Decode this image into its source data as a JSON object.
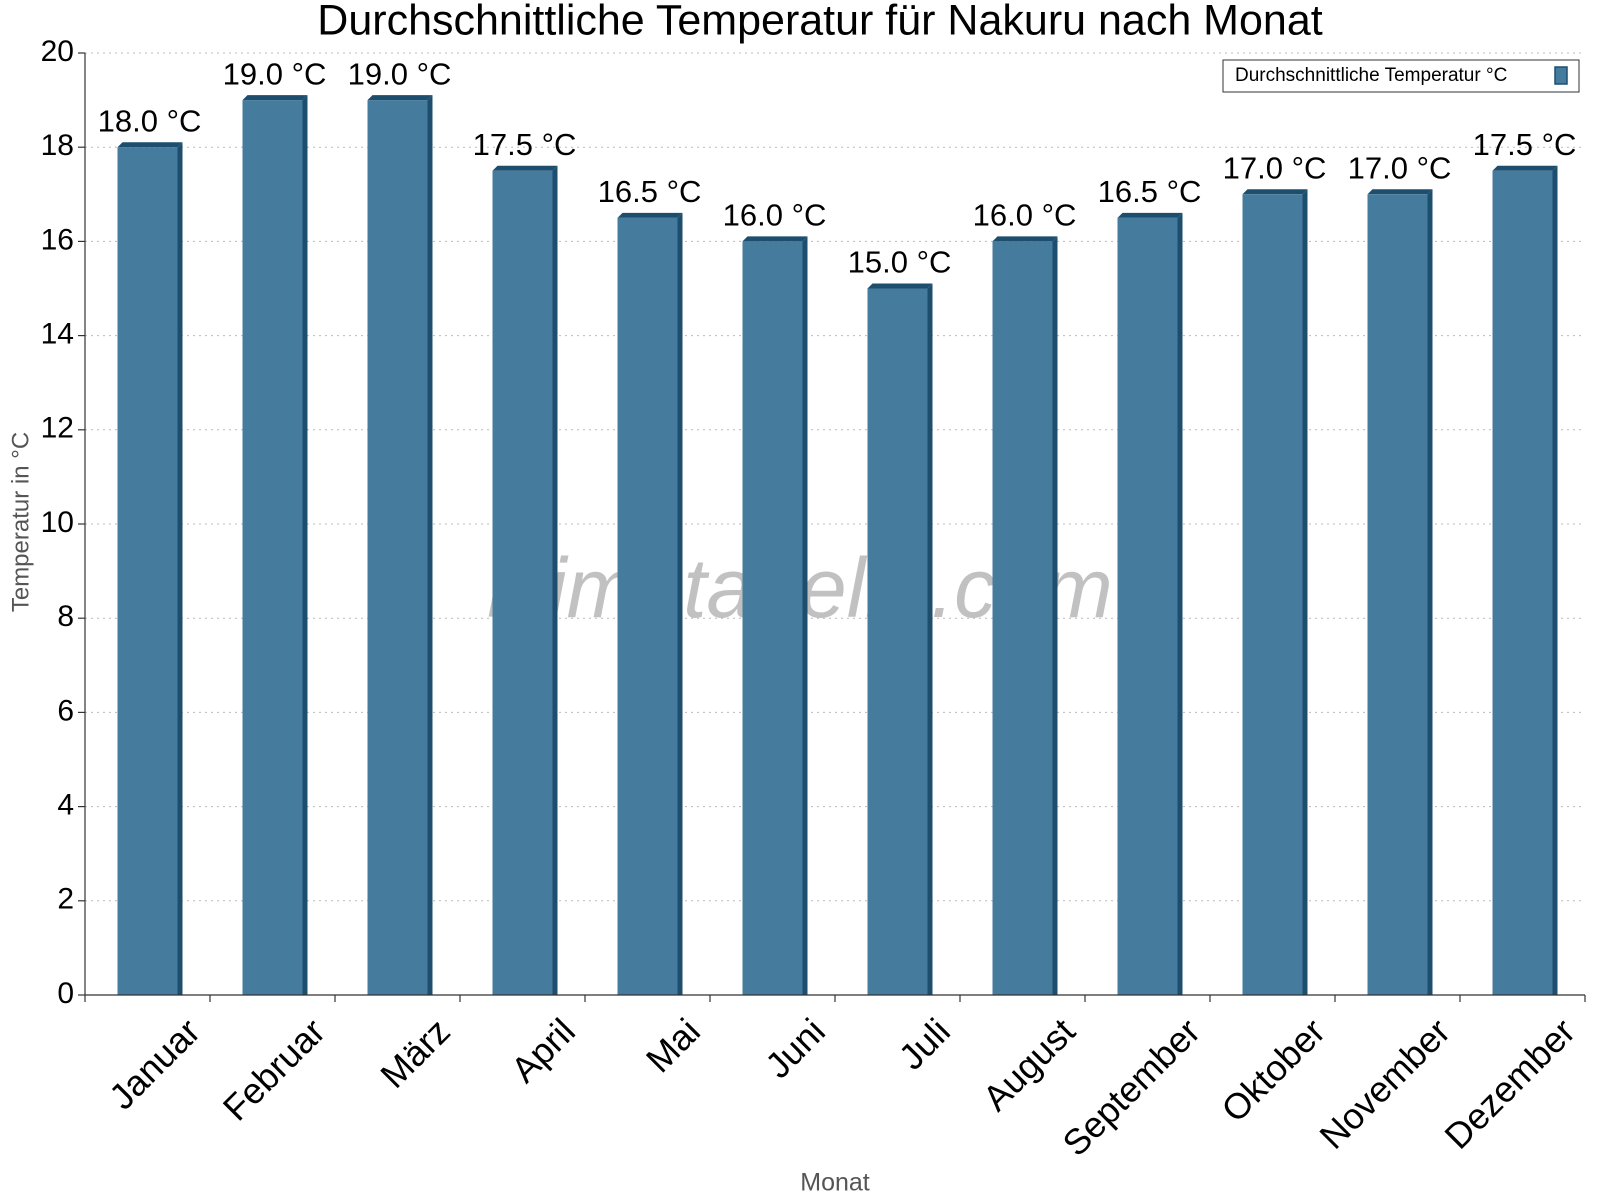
{
  "chart_data": {
    "type": "bar",
    "title": "Durchschnittliche Temperatur für Nakuru nach Monat",
    "x_label": "Monat",
    "y_label": "Temperatur in °C",
    "watermark": "klimatabelle.com",
    "categories": [
      "Januar",
      "Februar",
      "März",
      "April",
      "Mai",
      "Juni",
      "Juli",
      "August",
      "September",
      "Oktober",
      "November",
      "Dezember"
    ],
    "series": [
      {
        "name": "Durchschnittliche Temperatur °C",
        "color": "#457b9d",
        "values": [
          18.0,
          19.0,
          19.0,
          17.5,
          16.5,
          16.0,
          15.0,
          16.0,
          16.5,
          17.0,
          17.0,
          17.5
        ],
        "value_labels": [
          "18.0 °C",
          "19.0 °C",
          "19.0 °C",
          "17.5 °C",
          "16.5 °C",
          "16.0 °C",
          "15.0 °C",
          "16.0 °C",
          "16.5 °C",
          "17.0 °C",
          "17.0 °C",
          "17.5 °C"
        ]
      }
    ],
    "ylim": [
      0,
      20
    ],
    "yticks": [
      0,
      2,
      4,
      6,
      8,
      10,
      12,
      14,
      16,
      18,
      20
    ],
    "grid": true,
    "legend": "top-right"
  }
}
